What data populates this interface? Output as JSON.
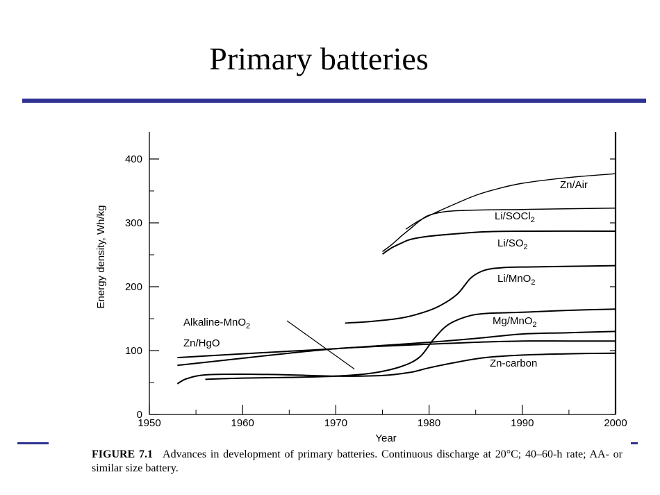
{
  "slide": {
    "title": "Primary batteries",
    "colors": {
      "rule": "#2e3192",
      "ink": "#000000"
    }
  },
  "caption": {
    "figure_label": "FIGURE 7.1",
    "text": "Advances in development of primary batteries. Continuous discharge at 20°C; 40–60-h rate; AA- or similar size battery."
  },
  "chart_data": {
    "type": "line",
    "title": "",
    "xlabel": "Year",
    "ylabel": "Energy density, Wh/kg",
    "xlim": [
      1950,
      2000
    ],
    "ylim": [
      0,
      440
    ],
    "xticks": [
      1950,
      1960,
      1970,
      1980,
      1990,
      2000
    ],
    "yticks": [
      0,
      100,
      200,
      300,
      400
    ],
    "xtick_labels": [
      "1950",
      "1960",
      "1970",
      "1980",
      "1990",
      "2000"
    ],
    "ytick_labels": [
      "0",
      "100",
      "200",
      "300",
      "400"
    ],
    "series": [
      {
        "name": "Zn/Air",
        "label": "Zn/Air",
        "x": [
          1977.5,
          1979,
          1981,
          1983,
          1985,
          1987,
          1990,
          1995,
          2000
        ],
        "y": [
          290,
          304,
          318,
          331,
          343,
          352,
          362,
          371,
          377
        ]
      },
      {
        "name": "Li/SOCl2",
        "label": "Li/SOCl",
        "sub": "2",
        "x": [
          1975,
          1976,
          1977,
          1978,
          1979,
          1980,
          1982,
          1985,
          1990,
          2000
        ],
        "y": [
          255,
          266,
          279,
          291,
          303,
          312,
          318,
          320,
          321,
          323
        ]
      },
      {
        "name": "Li/SO2",
        "label": "Li/SO",
        "sub": "2",
        "x": [
          1975,
          1976,
          1977,
          1978,
          1980,
          1983,
          1986,
          1990,
          2000
        ],
        "y": [
          251,
          261,
          268,
          274,
          279,
          283,
          286,
          287,
          287
        ]
      },
      {
        "name": "Li/MnO2",
        "label": "Li/MnO",
        "sub": "2",
        "x": [
          1971,
          1974,
          1977,
          1979,
          1981,
          1983,
          1984.5,
          1986,
          1988,
          1991,
          1995,
          2000
        ],
        "y": [
          143,
          146,
          151,
          158,
          169,
          188,
          214,
          226,
          230,
          231,
          232,
          233
        ]
      },
      {
        "name": "Mg/MnO2",
        "label": "Mg/MnO",
        "sub": "2",
        "x": [
          1956,
          1960,
          1965,
          1970,
          1974,
          1977,
          1979,
          1980.5,
          1982,
          1984,
          1986,
          1990,
          1995,
          2000
        ],
        "y": [
          55,
          57,
          58,
          60,
          65,
          75,
          90,
          118,
          140,
          153,
          158,
          160,
          163,
          165
        ]
      },
      {
        "name": "Zn-carbon",
        "label": "Zn-carbon",
        "x": [
          1953,
          1954,
          1956,
          1960,
          1965,
          1970,
          1975,
          1978,
          1980,
          1983,
          1986,
          1990,
          1995,
          2000
        ],
        "y": [
          48,
          56,
          62,
          63,
          62,
          60,
          61,
          66,
          73,
          82,
          89,
          93,
          95,
          96
        ]
      },
      {
        "name": "Alkaline-MnO2",
        "label": "Alkaline-MnO",
        "sub": "2",
        "x": [
          1953,
          1960,
          1965,
          1970,
          1975,
          1980,
          1985,
          1990,
          1995,
          2000
        ],
        "y": [
          77,
          88,
          96,
          103,
          107,
          110,
          113,
          115,
          115,
          115
        ]
      },
      {
        "name": "Zn/HgO",
        "label": "Zn/HgO",
        "x": [
          1953,
          1960,
          1965,
          1970,
          1975,
          1980,
          1985,
          1990,
          1995,
          2000
        ],
        "y": [
          89,
          95,
          99,
          103,
          108,
          113,
          119,
          126,
          128,
          130
        ]
      }
    ],
    "annotations": [
      {
        "text": "Alkaline-MnO",
        "sub": "2",
        "points_to": "Alkaline-MnO2",
        "arrow_to": [
          1972,
          71
        ]
      }
    ]
  }
}
